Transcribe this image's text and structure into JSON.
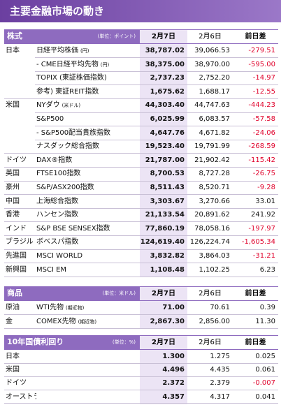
{
  "title": "主要金融市場の動き",
  "sections": [
    {
      "header": {
        "label": "株式",
        "unit": "(単位：ポイント)",
        "col1": "2月7日",
        "col2": "2月6日",
        "col3": "前日差"
      },
      "rows": [
        {
          "region": "日本",
          "name": "日経平均株価",
          "note": "(円)",
          "d1": "38,787.02",
          "d2": "39,066.53",
          "diff": "-279.51"
        },
        {
          "name": "- CME日経平均先物",
          "note": "(円)",
          "d1": "38,375.00",
          "d2": "38,970.00",
          "diff": "-595.00"
        },
        {
          "name": "TOPIX (東証株価指数)",
          "d1": "2,737.23",
          "d2": "2,752.20",
          "diff": "-14.97"
        },
        {
          "name": "参考) 東証REIT指数",
          "d1": "1,675.62",
          "d2": "1,688.17",
          "diff": "-12.55"
        },
        {
          "region": "米国",
          "name": "NYダウ",
          "note": "(米ドル)",
          "d1": "44,303.40",
          "d2": "44,747.63",
          "diff": "-444.23"
        },
        {
          "name": "S&P500",
          "d1": "6,025.99",
          "d2": "6,083.57",
          "diff": "-57.58"
        },
        {
          "name": "- S&P500配当貴族指数",
          "d1": "4,647.76",
          "d2": "4,671.82",
          "diff": "-24.06"
        },
        {
          "name": "ナスダック総合指数",
          "d1": "19,523.40",
          "d2": "19,791.99",
          "diff": "-268.59"
        },
        {
          "region": "ドイツ",
          "name": "DAX®指数",
          "d1": "21,787.00",
          "d2": "21,902.42",
          "diff": "-115.42"
        },
        {
          "region": "英国",
          "name": "FTSE100指数",
          "d1": "8,700.53",
          "d2": "8,727.28",
          "diff": "-26.75"
        },
        {
          "region": "豪州",
          "name": "S&P/ASX200指数",
          "d1": "8,511.43",
          "d2": "8,520.71",
          "diff": "-9.28"
        },
        {
          "region": "中国",
          "name": "上海総合指数",
          "d1": "3,303.67",
          "d2": "3,270.66",
          "diff": "33.01"
        },
        {
          "region": "香港",
          "name": "ハンセン指数",
          "d1": "21,133.54",
          "d2": "20,891.62",
          "diff": "241.92"
        },
        {
          "region": "インド",
          "name": "S&P BSE SENSEX指数",
          "d1": "77,860.19",
          "d2": "78,058.16",
          "diff": "-197.97"
        },
        {
          "region": "ブラジル",
          "name": "ボベスパ指数",
          "d1": "124,619.40",
          "d2": "126,224.74",
          "diff": "-1,605.34"
        },
        {
          "region": "先進国",
          "name": "MSCI WORLD",
          "d1": "3,832.82",
          "d2": "3,864.03",
          "diff": "-31.21"
        },
        {
          "region": "新興国",
          "name": "MSCI EM",
          "d1": "1,108.48",
          "d2": "1,102.25",
          "diff": "6.23"
        }
      ]
    },
    {
      "header": {
        "label": "商品",
        "unit": "(単位：米ドル)",
        "col1": "2月7日",
        "col2": "2月6日",
        "col3": "前日差"
      },
      "rows": [
        {
          "region": "原油",
          "name": "WTI先物",
          "note": "(期近物)",
          "d1": "71.00",
          "d2": "70.61",
          "diff": "0.39"
        },
        {
          "region": "金",
          "name": "COMEX先物",
          "note": "(期近物)",
          "d1": "2,867.30",
          "d2": "2,856.00",
          "diff": "11.30"
        }
      ]
    },
    {
      "header": {
        "label": "10年国債利回り",
        "unit": "(単位：%)",
        "col1": "2月7日",
        "col2": "2月6日",
        "col3": "前日差"
      },
      "rows": [
        {
          "region": "日本",
          "d1": "1.300",
          "d2": "1.275",
          "diff": "0.025"
        },
        {
          "region": "米国",
          "d1": "4.496",
          "d2": "4.435",
          "diff": "0.061"
        },
        {
          "region": "ドイツ",
          "d1": "2.372",
          "d2": "2.379",
          "diff": "-0.007"
        },
        {
          "region": "オーストラリア",
          "d1": "4.357",
          "d2": "4.317",
          "diff": "0.041"
        }
      ]
    }
  ]
}
